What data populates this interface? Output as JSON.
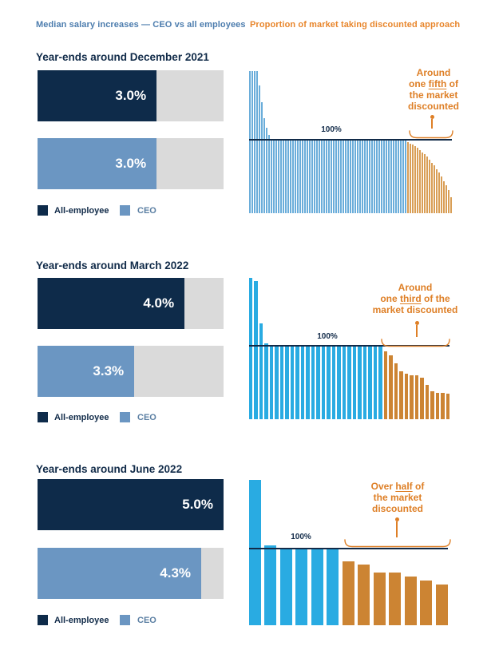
{
  "header": {
    "left": "Median salary increases — CEO vs all employees",
    "right": "Proportion of market taking discounted approach"
  },
  "legend": {
    "all_employee": "All-employee",
    "ceo": "CEO"
  },
  "labels": {
    "reference_line": "100%"
  },
  "colors": {
    "navy": "#0e2b4a",
    "steel_blue": "#6b96c2",
    "track_gray": "#dadada",
    "header_blue": "#4d7dae",
    "header_orange": "#e8862c",
    "annotation_orange": "#de7f26",
    "line_navy": "#122b49",
    "cyan": "#29abe2",
    "light_blue_bars": "#6aadda",
    "orange_bars": "#cc8433",
    "light_orange_bars": "#d99e55",
    "ceo_label_blue": "#5b7fa3",
    "title_navy": "#112b49",
    "white": "#ffffff"
  },
  "sections": [
    {
      "title": "Year-ends around December 2021",
      "annotation_lines": [
        "Around",
        "one fifth of",
        "the market",
        "discounted"
      ],
      "annotation_underline": "fifth"
    },
    {
      "title": "Year-ends around March 2022",
      "annotation_lines": [
        "Around",
        "one third of the",
        "market discounted"
      ],
      "annotation_underline": "third"
    },
    {
      "title": "Year-ends around June 2022",
      "annotation_lines": [
        "Over half of",
        "the market",
        "discounted"
      ],
      "annotation_underline": "half"
    }
  ],
  "chart_data": [
    {
      "type": "bar",
      "section": "Year-ends around December 2021",
      "subtype": "median salary increases",
      "categories": [
        "All-employee",
        "CEO"
      ],
      "values": [
        3.0,
        3.0
      ],
      "unit": "%",
      "bar_track_fill_pct": [
        64,
        64
      ]
    },
    {
      "type": "bar",
      "section": "Year-ends around December 2021",
      "subtype": "market distribution of CEO awards vs 100% reference line",
      "reference_line": 100,
      "annotation": "Around one fifth of the market discounted",
      "series": [
        {
          "name": "not discounted",
          "color_role": "blue",
          "values": [
            193,
            193,
            193,
            193,
            174,
            151,
            129,
            116,
            107,
            100,
            100,
            100,
            100,
            100,
            100,
            100,
            100,
            100,
            100,
            100,
            100,
            100,
            100,
            100,
            100,
            100,
            100,
            100,
            100,
            100,
            100,
            100,
            100,
            100,
            100,
            100,
            100,
            100,
            100,
            100,
            100,
            100,
            100,
            100,
            100,
            100,
            100,
            100,
            100,
            100,
            100,
            100,
            100,
            100,
            100,
            100,
            100,
            100,
            100,
            100,
            100,
            100,
            100,
            100,
            100,
            100
          ]
        },
        {
          "name": "discounted",
          "color_role": "orange",
          "values": [
            97,
            95,
            93,
            91,
            89,
            86,
            83,
            80,
            77,
            73,
            69,
            65,
            60,
            55,
            50,
            44,
            38,
            31,
            22
          ]
        }
      ]
    },
    {
      "type": "bar",
      "section": "Year-ends around March 2022",
      "subtype": "median salary increases",
      "categories": [
        "All-employee",
        "CEO"
      ],
      "values": [
        4.0,
        3.3
      ],
      "unit": "%",
      "bar_track_fill_pct": [
        79,
        52
      ]
    },
    {
      "type": "bar",
      "section": "Year-ends around March 2022",
      "subtype": "market distribution of CEO awards vs 100% reference line",
      "reference_line": 100,
      "annotation": "Around one third of the market discounted",
      "series": [
        {
          "name": "not discounted",
          "color_role": "blue",
          "values": [
            192,
            188,
            130,
            103,
            100,
            100,
            100,
            100,
            100,
            100,
            100,
            100,
            100,
            100,
            100,
            100,
            100,
            100,
            100,
            100,
            100,
            100,
            100,
            100,
            100,
            100
          ]
        },
        {
          "name": "discounted",
          "color_role": "orange",
          "values": [
            92,
            87,
            76,
            65,
            62,
            60,
            60,
            57,
            47,
            38,
            36,
            36,
            35
          ]
        }
      ]
    },
    {
      "type": "bar",
      "section": "Year-ends around June 2022",
      "subtype": "median salary increases",
      "categories": [
        "All-employee",
        "CEO"
      ],
      "values": [
        5.0,
        4.3
      ],
      "unit": "%",
      "bar_track_fill_pct": [
        100,
        88
      ]
    },
    {
      "type": "bar",
      "section": "Year-ends around June 2022",
      "subtype": "market distribution of CEO awards vs 100% reference line",
      "reference_line": 100,
      "annotation": "Over half of the market discounted",
      "series": [
        {
          "name": "not discounted",
          "color_role": "blue",
          "values": [
            190,
            104,
            100,
            100,
            100,
            100
          ]
        },
        {
          "name": "discounted",
          "color_role": "orange",
          "values": [
            83,
            79,
            69,
            69,
            64,
            58,
            53
          ]
        }
      ]
    }
  ]
}
